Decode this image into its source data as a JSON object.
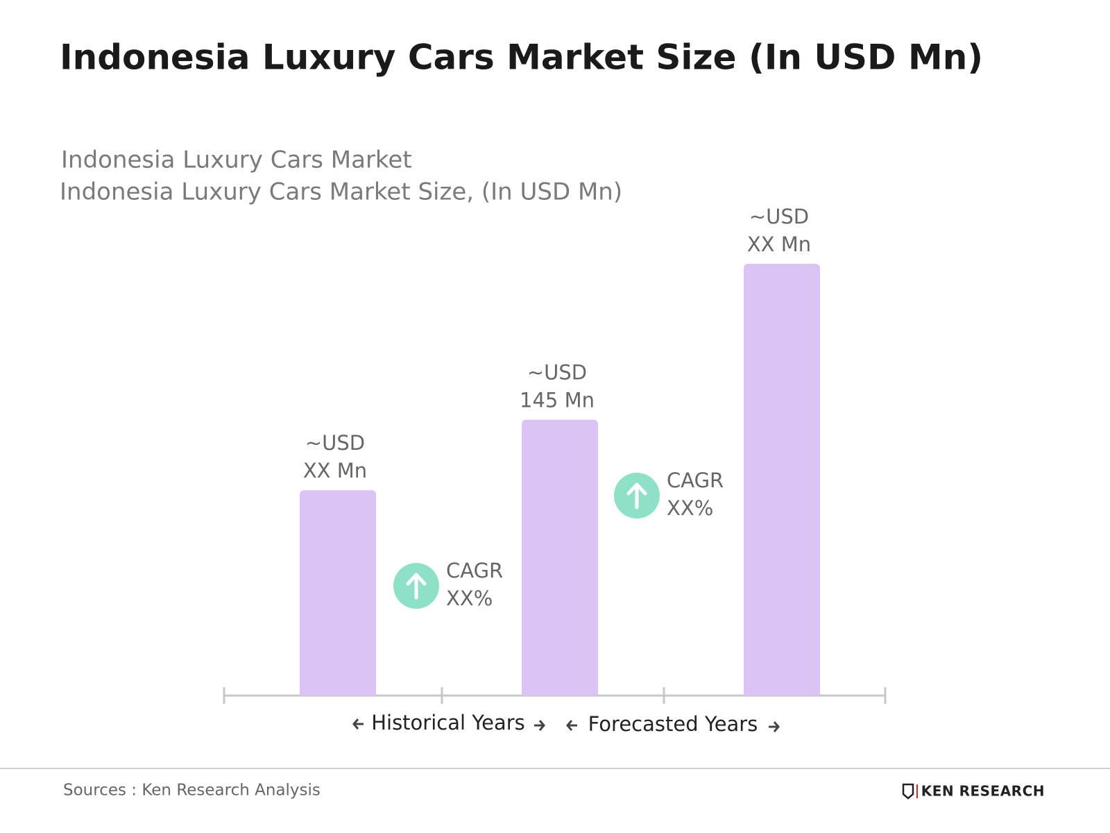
{
  "chart_data": {
    "type": "bar",
    "title": "Indonesia Luxury Cars Market Size (In USD Mn)",
    "subtitle": [
      "Indonesia Luxury Cars Market",
      "Indonesia Luxury Cars Market Size, (In USD Mn)"
    ],
    "categories": [
      null,
      null,
      null
    ],
    "values": [
      108,
      145,
      227
    ],
    "value_labels": [
      [
        "~USD",
        "XX Mn"
      ],
      [
        "~USD",
        "145 Mn"
      ],
      [
        "~USD",
        "XX Mn"
      ]
    ],
    "color": "#dcc3f5",
    "annotations": [
      {
        "lines": [
          "CAGR",
          "XX%"
        ]
      },
      {
        "lines": [
          "CAGR",
          "XX%"
        ]
      }
    ],
    "annotation_color": "#8ee0c6",
    "periods": [
      "Historical Years",
      "Forecasted Years"
    ],
    "source": "Sources : Ken Research Analysis",
    "brand": "KEN RESEARCH"
  }
}
